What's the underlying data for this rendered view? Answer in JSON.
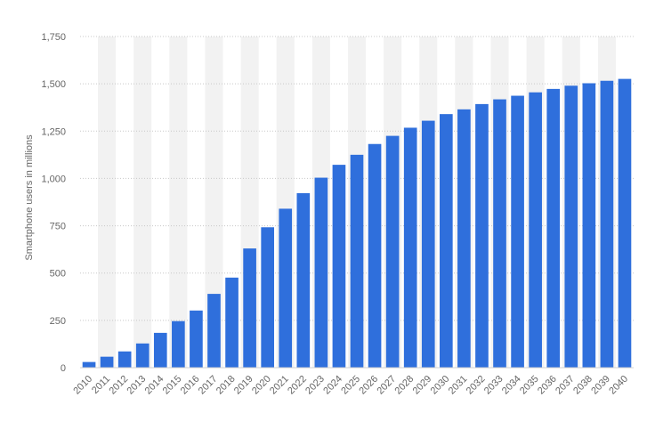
{
  "chart_data": {
    "type": "bar",
    "ylabel": "Smartphone users in millions",
    "ylim": [
      0,
      1750
    ],
    "y_ticks": [
      0,
      250,
      500,
      750,
      1000,
      1250,
      1500,
      1750
    ],
    "y_tick_labels": [
      "0",
      "250",
      "500",
      "750",
      "1,000",
      "1,250",
      "1,500",
      "1,750"
    ],
    "grid": true,
    "bar_color": "#2f6fdc",
    "band_color": "#f2f2f2",
    "categories": [
      "2010",
      "2011",
      "2012",
      "2013",
      "2014",
      "2015",
      "2016",
      "2017",
      "2018",
      "2019",
      "2020",
      "2021",
      "2022",
      "2023",
      "2024",
      "2025",
      "2026",
      "2027",
      "2028",
      "2029",
      "2030",
      "2031",
      "2032",
      "2033",
      "2034",
      "2035",
      "2036",
      "2037",
      "2038",
      "2039",
      "2040"
    ],
    "values": [
      30,
      58,
      86,
      128,
      184,
      246,
      302,
      390,
      476,
      630,
      742,
      840,
      922,
      1004,
      1072,
      1125,
      1182,
      1225,
      1268,
      1305,
      1340,
      1365,
      1393,
      1418,
      1437,
      1455,
      1473,
      1490,
      1503,
      1516,
      1526
    ]
  }
}
